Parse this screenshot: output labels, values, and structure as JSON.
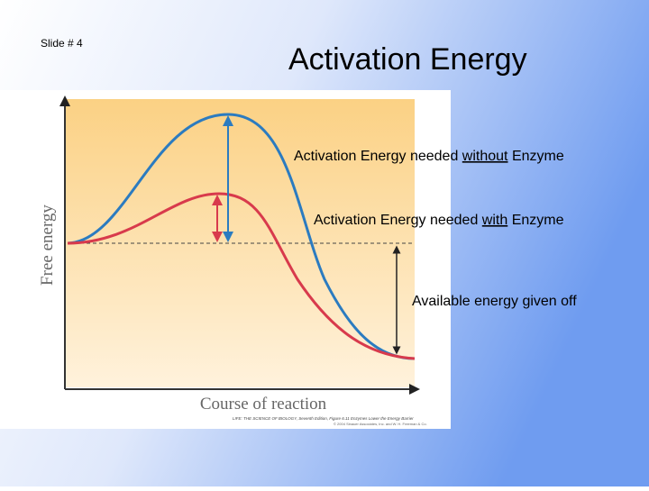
{
  "slide": {
    "number": "Slide # 4",
    "title": "Activation Energy"
  },
  "figure": {
    "y_axis_label": "Free energy",
    "x_axis_label": "Course of reaction",
    "credit": [
      "LIFE: THE SCIENCE OF BIOLOGY, Seventh Edition, Figure 6.11 Enzymes Lower the Energy Barrier",
      "© 2004 Sinauer Associates, Inc. and W. H. Freeman & Co."
    ]
  },
  "annotations": [
    {
      "before": "Activation Energy needed ",
      "emphasis": "without",
      "after": " Enzyme"
    },
    {
      "before": "Activation Energy needed ",
      "emphasis": "with",
      "after": " Enzyme"
    },
    {
      "text": "Available energy given off"
    }
  ]
}
